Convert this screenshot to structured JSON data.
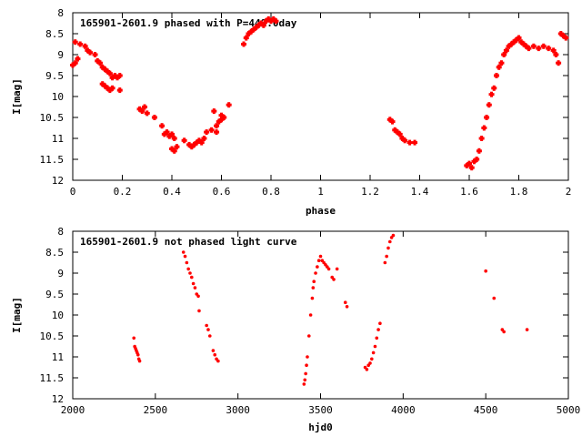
{
  "chart_data": [
    {
      "type": "scatter",
      "title": "165901-2601.9 phased with P=449.0day",
      "xlabel": "phase",
      "ylabel": "I[mag]",
      "xlim": [
        0,
        2
      ],
      "ylim": [
        12,
        8
      ],
      "y_inverted": true,
      "grid": false,
      "legend": "none",
      "marker_color": "#ff0000",
      "marker": "plus",
      "x_ticks": [
        0,
        0.2,
        0.4,
        0.6,
        0.8,
        1,
        1.2,
        1.4,
        1.6,
        1.8,
        2
      ],
      "x_tick_labels": [
        "0",
        "0.2",
        "0.4",
        "0.6",
        "0.8",
        "1",
        "1.2",
        "1.4",
        "1.6",
        "1.8",
        "2"
      ],
      "y_ticks": [
        8,
        8.5,
        9,
        9.5,
        10,
        10.5,
        11,
        11.5,
        12
      ],
      "y_tick_labels": [
        "8",
        "8.5",
        "9",
        "9.5",
        "10",
        "10.5",
        "11",
        "11.5",
        "12"
      ],
      "series": [
        {
          "points": [
            [
              0.0,
              9.25
            ],
            [
              0.01,
              9.2
            ],
            [
              0.02,
              9.1
            ],
            [
              0.01,
              8.7
            ],
            [
              0.03,
              8.75
            ],
            [
              0.05,
              8.8
            ],
            [
              0.06,
              8.9
            ],
            [
              0.07,
              8.95
            ],
            [
              0.09,
              9.0
            ],
            [
              0.1,
              9.15
            ],
            [
              0.11,
              9.2
            ],
            [
              0.12,
              9.3
            ],
            [
              0.13,
              9.35
            ],
            [
              0.14,
              9.4
            ],
            [
              0.15,
              9.45
            ],
            [
              0.16,
              9.55
            ],
            [
              0.17,
              9.5
            ],
            [
              0.18,
              9.55
            ],
            [
              0.19,
              9.5
            ],
            [
              0.12,
              9.7
            ],
            [
              0.13,
              9.75
            ],
            [
              0.14,
              9.8
            ],
            [
              0.15,
              9.85
            ],
            [
              0.16,
              9.8
            ],
            [
              0.19,
              9.85
            ],
            [
              0.27,
              10.3
            ],
            [
              0.28,
              10.35
            ],
            [
              0.29,
              10.25
            ],
            [
              0.3,
              10.4
            ],
            [
              0.33,
              10.5
            ],
            [
              0.36,
              10.7
            ],
            [
              0.37,
              10.9
            ],
            [
              0.38,
              10.85
            ],
            [
              0.39,
              10.95
            ],
            [
              0.4,
              10.9
            ],
            [
              0.41,
              11.0
            ],
            [
              0.4,
              11.25
            ],
            [
              0.41,
              11.3
            ],
            [
              0.42,
              11.2
            ],
            [
              0.45,
              11.05
            ],
            [
              0.47,
              11.15
            ],
            [
              0.48,
              11.2
            ],
            [
              0.49,
              11.15
            ],
            [
              0.5,
              11.1
            ],
            [
              0.51,
              11.05
            ],
            [
              0.52,
              11.1
            ],
            [
              0.53,
              11.0
            ],
            [
              0.54,
              10.85
            ],
            [
              0.56,
              10.8
            ],
            [
              0.58,
              10.85
            ],
            [
              0.58,
              10.7
            ],
            [
              0.59,
              10.6
            ],
            [
              0.6,
              10.55
            ],
            [
              0.61,
              10.5
            ],
            [
              0.57,
              10.35
            ],
            [
              0.6,
              10.45
            ],
            [
              0.63,
              10.2
            ],
            [
              0.69,
              8.75
            ],
            [
              0.7,
              8.6
            ],
            [
              0.71,
              8.5
            ],
            [
              0.72,
              8.45
            ],
            [
              0.73,
              8.4
            ],
            [
              0.74,
              8.35
            ],
            [
              0.75,
              8.3
            ],
            [
              0.76,
              8.25
            ],
            [
              0.77,
              8.3
            ],
            [
              0.78,
              8.2
            ],
            [
              0.79,
              8.15
            ],
            [
              0.8,
              8.2
            ],
            [
              0.81,
              8.15
            ],
            [
              0.82,
              8.2
            ],
            [
              1.28,
              10.55
            ],
            [
              1.29,
              10.6
            ],
            [
              1.3,
              10.8
            ],
            [
              1.31,
              10.85
            ],
            [
              1.32,
              10.9
            ],
            [
              1.33,
              11.0
            ],
            [
              1.34,
              11.05
            ],
            [
              1.36,
              11.1
            ],
            [
              1.38,
              11.1
            ],
            [
              1.59,
              11.65
            ],
            [
              1.6,
              11.6
            ],
            [
              1.61,
              11.7
            ],
            [
              1.62,
              11.55
            ],
            [
              1.63,
              11.5
            ],
            [
              1.64,
              11.3
            ],
            [
              1.65,
              11.0
            ],
            [
              1.66,
              10.75
            ],
            [
              1.67,
              10.5
            ],
            [
              1.68,
              10.2
            ],
            [
              1.69,
              9.95
            ],
            [
              1.7,
              9.8
            ],
            [
              1.71,
              9.5
            ],
            [
              1.72,
              9.3
            ],
            [
              1.73,
              9.2
            ],
            [
              1.74,
              9.0
            ],
            [
              1.75,
              8.9
            ],
            [
              1.76,
              8.8
            ],
            [
              1.77,
              8.75
            ],
            [
              1.78,
              8.7
            ],
            [
              1.79,
              8.65
            ],
            [
              1.8,
              8.6
            ],
            [
              1.81,
              8.7
            ],
            [
              1.82,
              8.75
            ],
            [
              1.83,
              8.8
            ],
            [
              1.84,
              8.85
            ],
            [
              1.86,
              8.8
            ],
            [
              1.88,
              8.85
            ],
            [
              1.9,
              8.8
            ],
            [
              1.92,
              8.85
            ],
            [
              1.94,
              8.9
            ],
            [
              1.95,
              9.0
            ],
            [
              1.96,
              9.2
            ],
            [
              1.97,
              8.5
            ],
            [
              1.98,
              8.55
            ],
            [
              1.99,
              8.6
            ]
          ]
        }
      ]
    },
    {
      "type": "scatter",
      "title": "165901-2601.9 not phased light curve",
      "xlabel": "hjd0",
      "ylabel": "I[mag]",
      "xlim": [
        2000,
        5000
      ],
      "ylim": [
        12,
        8
      ],
      "y_inverted": true,
      "grid": false,
      "legend": "none",
      "marker_color": "#ff0000",
      "marker": "dot",
      "x_ticks": [
        2000,
        2500,
        3000,
        3500,
        4000,
        4500,
        5000
      ],
      "x_tick_labels": [
        "2000",
        "2500",
        "3000",
        "3500",
        "4000",
        "4500",
        "5000"
      ],
      "y_ticks": [
        8,
        8.5,
        9,
        9.5,
        10,
        10.5,
        11,
        11.5,
        12
      ],
      "y_tick_labels": [
        "8",
        "8.5",
        "9",
        "9.5",
        "10",
        "10.5",
        "11",
        "11.5",
        "12"
      ],
      "series": [
        {
          "points": [
            [
              2370,
              10.55
            ],
            [
              2375,
              10.75
            ],
            [
              2380,
              10.8
            ],
            [
              2385,
              10.85
            ],
            [
              2390,
              10.9
            ],
            [
              2395,
              10.95
            ],
            [
              2400,
              11.05
            ],
            [
              2405,
              11.1
            ],
            [
              2670,
              8.5
            ],
            [
              2680,
              8.6
            ],
            [
              2690,
              8.75
            ],
            [
              2700,
              8.9
            ],
            [
              2710,
              9.0
            ],
            [
              2720,
              9.1
            ],
            [
              2730,
              9.25
            ],
            [
              2740,
              9.35
            ],
            [
              2750,
              9.5
            ],
            [
              2760,
              9.55
            ],
            [
              2765,
              9.9
            ],
            [
              2810,
              10.25
            ],
            [
              2820,
              10.35
            ],
            [
              2830,
              10.5
            ],
            [
              2850,
              10.85
            ],
            [
              2860,
              10.95
            ],
            [
              2870,
              11.05
            ],
            [
              2880,
              11.1
            ],
            [
              3400,
              11.65
            ],
            [
              3405,
              11.55
            ],
            [
              3410,
              11.4
            ],
            [
              3415,
              11.2
            ],
            [
              3420,
              11.0
            ],
            [
              3430,
              10.5
            ],
            [
              3440,
              10.0
            ],
            [
              3450,
              9.6
            ],
            [
              3455,
              9.35
            ],
            [
              3460,
              9.2
            ],
            [
              3470,
              9.0
            ],
            [
              3480,
              8.85
            ],
            [
              3490,
              8.7
            ],
            [
              3500,
              8.6
            ],
            [
              3510,
              8.7
            ],
            [
              3520,
              8.75
            ],
            [
              3530,
              8.8
            ],
            [
              3540,
              8.85
            ],
            [
              3550,
              8.9
            ],
            [
              3570,
              9.1
            ],
            [
              3580,
              9.15
            ],
            [
              3600,
              8.9
            ],
            [
              3650,
              9.7
            ],
            [
              3660,
              9.8
            ],
            [
              3770,
              11.25
            ],
            [
              3780,
              11.3
            ],
            [
              3790,
              11.2
            ],
            [
              3800,
              11.15
            ],
            [
              3810,
              11.05
            ],
            [
              3820,
              10.9
            ],
            [
              3830,
              10.75
            ],
            [
              3840,
              10.55
            ],
            [
              3850,
              10.35
            ],
            [
              3860,
              10.2
            ],
            [
              3890,
              8.75
            ],
            [
              3900,
              8.6
            ],
            [
              3910,
              8.4
            ],
            [
              3920,
              8.25
            ],
            [
              3930,
              8.15
            ],
            [
              3940,
              8.1
            ],
            [
              4500,
              8.95
            ],
            [
              4550,
              9.6
            ],
            [
              4600,
              10.35
            ],
            [
              4610,
              10.4
            ],
            [
              4750,
              10.35
            ]
          ]
        }
      ]
    }
  ]
}
